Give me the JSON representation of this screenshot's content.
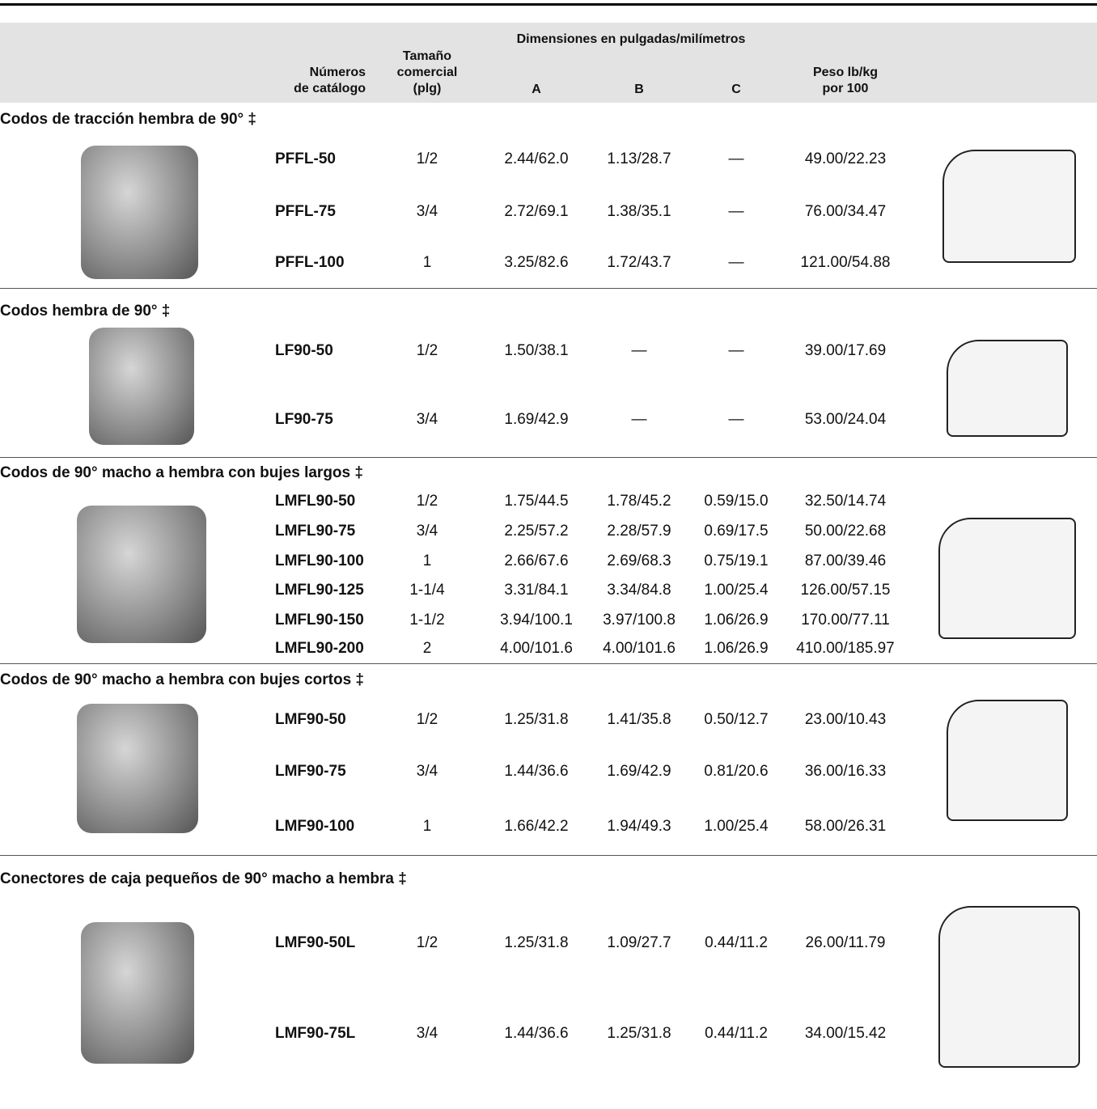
{
  "header": {
    "catalog": [
      "Números",
      "de catálogo"
    ],
    "size": [
      "Tamaño",
      "comercial",
      "(plg)"
    ],
    "dimensions": "Dimensiones en pulgadas/milímetros",
    "a": "A",
    "b": "B",
    "c": "C",
    "weight": [
      "Peso lb/kg",
      "por 100"
    ]
  },
  "sections": [
    {
      "title": "Codos de tracción hembra de 90° ‡",
      "rows": [
        [
          "PFFL-50",
          "1/2",
          "2.44/62.0",
          "1.13/28.7",
          "—",
          "49.00/22.23"
        ],
        [
          "PFFL-75",
          "3/4",
          "2.72/69.1",
          "1.38/35.1",
          "—",
          "76.00/34.47"
        ],
        [
          "PFFL-100",
          "1",
          "3.25/82.6",
          "1.72/43.7",
          "—",
          "121.00/54.88"
        ]
      ]
    },
    {
      "title": "Codos hembra de 90° ‡",
      "rows": [
        [
          "LF90-50",
          "1/2",
          "1.50/38.1",
          "—",
          "—",
          "39.00/17.69"
        ],
        [
          "LF90-75",
          "3/4",
          "1.69/42.9",
          "—",
          "—",
          "53.00/24.04"
        ]
      ]
    },
    {
      "title": "Codos de 90° macho a hembra con bujes largos ‡",
      "rows": [
        [
          "LMFL90-50",
          "1/2",
          "1.75/44.5",
          "1.78/45.2",
          "0.59/15.0",
          "32.50/14.74"
        ],
        [
          "LMFL90-75",
          "3/4",
          "2.25/57.2",
          "2.28/57.9",
          "0.69/17.5",
          "50.00/22.68"
        ],
        [
          "LMFL90-100",
          "1",
          "2.66/67.6",
          "2.69/68.3",
          "0.75/19.1",
          "87.00/39.46"
        ],
        [
          "LMFL90-125",
          "1-1/4",
          "3.31/84.1",
          "3.34/84.8",
          "1.00/25.4",
          "126.00/57.15"
        ],
        [
          "LMFL90-150",
          "1-1/2",
          "3.94/100.1",
          "3.97/100.8",
          "1.06/26.9",
          "170.00/77.11"
        ],
        [
          "LMFL90-200",
          "2",
          "4.00/101.6",
          "4.00/101.6",
          "1.06/26.9",
          "410.00/185.97"
        ]
      ]
    },
    {
      "title": "Codos de 90° macho a hembra con bujes cortos ‡",
      "rows": [
        [
          "LMF90-50",
          "1/2",
          "1.25/31.8",
          "1.41/35.8",
          "0.50/12.7",
          "23.00/10.43"
        ],
        [
          "LMF90-75",
          "3/4",
          "1.44/36.6",
          "1.69/42.9",
          "0.81/20.6",
          "36.00/16.33"
        ],
        [
          "LMF90-100",
          "1",
          "1.66/42.2",
          "1.94/49.3",
          "1.00/25.4",
          "58.00/26.31"
        ]
      ]
    },
    {
      "title": "Conectores de caja pequeños de 90° macho a hembra ‡",
      "rows": [
        [
          "LMF90-50L",
          "1/2",
          "1.25/31.8",
          "1.09/27.7",
          "0.44/11.2",
          "26.00/11.79"
        ],
        [
          "LMF90-75L",
          "3/4",
          "1.44/36.6",
          "1.25/31.8",
          "0.44/11.2",
          "34.00/15.42"
        ]
      ]
    }
  ]
}
